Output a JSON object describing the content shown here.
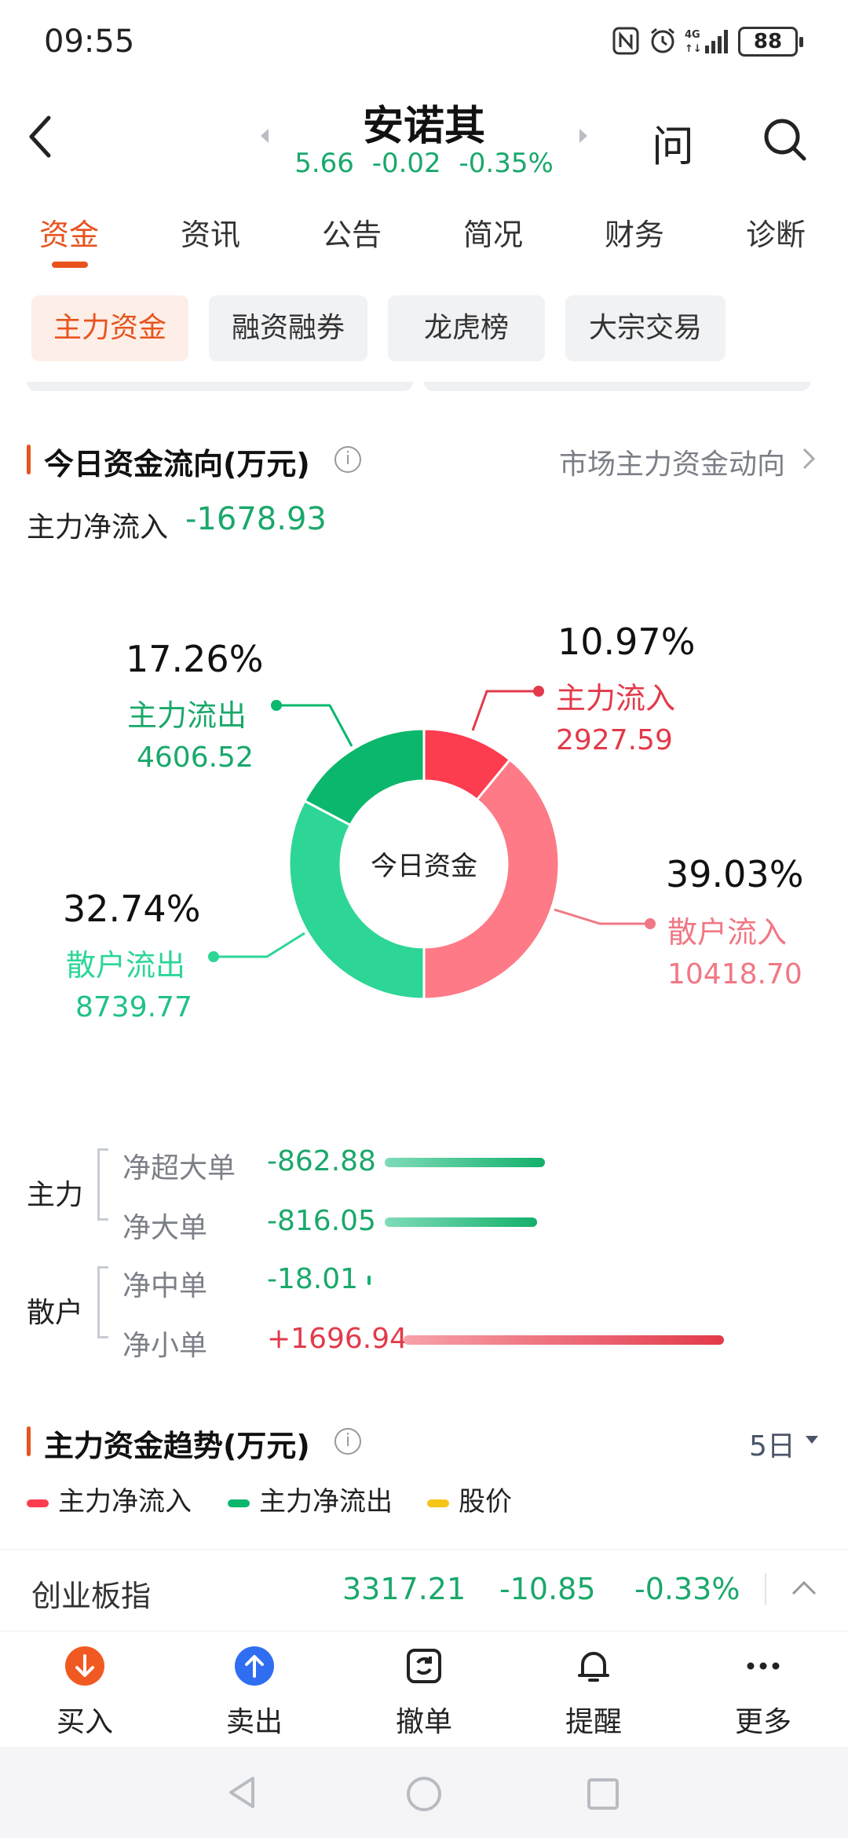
{
  "status_bar": {
    "time": "09:55",
    "battery": "88"
  },
  "header": {
    "title": "安诺其",
    "price": "5.66",
    "change": "-0.02",
    "change_pct": "-0.35%",
    "ask_label": "问"
  },
  "tabs": [
    "资金",
    "资讯",
    "公告",
    "简况",
    "财务",
    "诊断"
  ],
  "sub_tabs": [
    "主力资金",
    "融资融券",
    "龙虎榜",
    "大宗交易"
  ],
  "flow_section": {
    "title": "今日资金流向(万元)",
    "link": "市场主力资金动向",
    "net_label": "主力净流入",
    "net_value": "-1678.93",
    "donut_center": "今日资金",
    "segments": [
      {
        "label": "主力流入",
        "pct": "10.97%",
        "value": "2927.59",
        "share": 10.97,
        "color": "#fc3c4f"
      },
      {
        "label": "散户流入",
        "pct": "39.03%",
        "value": "10418.70",
        "share": 39.03,
        "color": "#fd7a86"
      },
      {
        "label": "散户流出",
        "pct": "32.74%",
        "value": "8739.77",
        "share": 32.74,
        "color": "#2dd696"
      },
      {
        "label": "主力流出",
        "pct": "17.26%",
        "value": "4606.52",
        "share": 17.26,
        "color": "#0bb76c"
      }
    ]
  },
  "breakdown": {
    "groups": [
      {
        "name": "主力",
        "rows": [
          {
            "label": "净超大单",
            "value": "-862.88"
          },
          {
            "label": "净大单",
            "value": "-816.05"
          }
        ]
      },
      {
        "name": "散户",
        "rows": [
          {
            "label": "净中单",
            "value": "-18.01"
          },
          {
            "label": "净小单",
            "value": "+1696.94"
          }
        ]
      }
    ]
  },
  "trend_section": {
    "title": "主力资金趋势(万元)",
    "period": "5日",
    "legend": [
      "主力净流入",
      "主力净流出",
      "股价"
    ]
  },
  "index_bar": {
    "name": "创业板指",
    "value": "3317.21",
    "change": "-10.85",
    "change_pct": "-0.33%"
  },
  "actions": [
    "买入",
    "卖出",
    "撤单",
    "提醒",
    "更多"
  ],
  "colors": {
    "accent": "#e8531d",
    "up": "#e23a4a",
    "down": "#1aa86b"
  }
}
